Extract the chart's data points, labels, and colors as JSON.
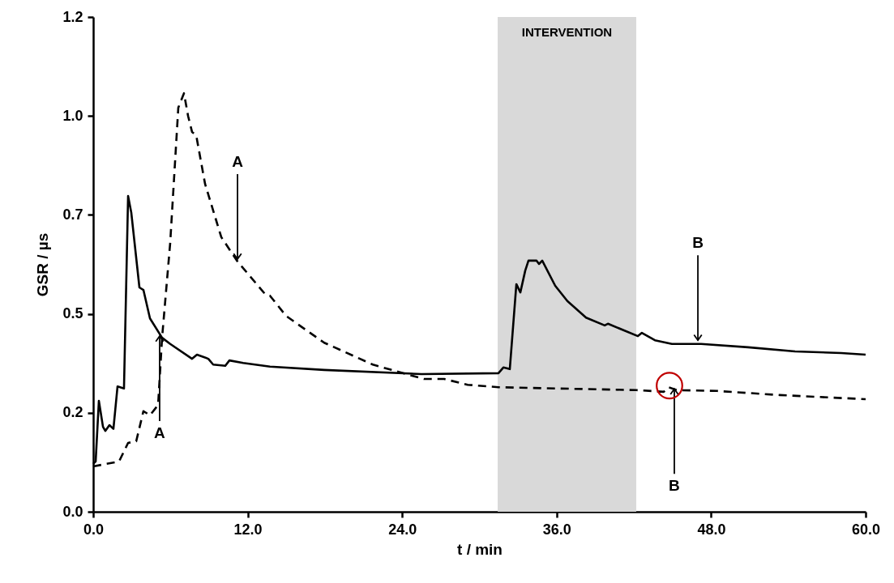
{
  "chart_data": {
    "type": "line",
    "xlabel": "t / min",
    "ylabel": "GSR / µs",
    "xlim": [
      0,
      60
    ],
    "ylim": [
      0,
      1.2
    ],
    "xticks": [
      {
        "value": 0,
        "label": "0.0"
      },
      {
        "value": 12,
        "label": "12.0"
      },
      {
        "value": 24,
        "label": "24.0"
      },
      {
        "value": 36,
        "label": "36.0"
      },
      {
        "value": 48,
        "label": "48.0"
      },
      {
        "value": 60,
        "label": "60.0"
      }
    ],
    "yticks": [
      {
        "value": 0,
        "label": "0.0"
      },
      {
        "value": 0.24,
        "label": "0.2"
      },
      {
        "value": 0.48,
        "label": "0.5"
      },
      {
        "value": 0.72,
        "label": "0.7"
      },
      {
        "value": 0.96,
        "label": "1.0"
      },
      {
        "value": 1.2,
        "label": "1.2"
      }
    ],
    "grid": false,
    "series": [
      {
        "color": "#000000",
        "line_style": "solid",
        "x": [
          0,
          0.19,
          0.44,
          0.76,
          0.94,
          1.26,
          1.57,
          1.89,
          2.39,
          2.71,
          2.96,
          3.59,
          3.9,
          4.41,
          5.35,
          5.98,
          7.68,
          8.06,
          8.94,
          9.32,
          10.26,
          10.58,
          11.65,
          13.73,
          17.94,
          25.5,
          31.48,
          31.86,
          32.36,
          32.87,
          33.18,
          33.56,
          33.81,
          34.44,
          34.63,
          34.88,
          35.89,
          36.83,
          38.28,
          39.73,
          39.98,
          42.31,
          42.62,
          43.63,
          44.95,
          47.22,
          50.87,
          54.52,
          58.11,
          60
        ],
        "values": [
          0.116,
          0.122,
          0.269,
          0.206,
          0.196,
          0.21,
          0.201,
          0.304,
          0.299,
          0.766,
          0.725,
          0.544,
          0.538,
          0.469,
          0.422,
          0.407,
          0.371,
          0.381,
          0.371,
          0.357,
          0.354,
          0.367,
          0.361,
          0.352,
          0.344,
          0.334,
          0.336,
          0.35,
          0.346,
          0.552,
          0.532,
          0.585,
          0.609,
          0.609,
          0.601,
          0.609,
          0.548,
          0.511,
          0.471,
          0.452,
          0.456,
          0.426,
          0.434,
          0.416,
          0.407,
          0.407,
          0.399,
          0.389,
          0.385,
          0.381
        ]
      },
      {
        "color": "#000000",
        "line_style": "dashed",
        "x": [
          0,
          2.01,
          2.71,
          3.34,
          3.9,
          4.41,
          5.04,
          5.35,
          5.98,
          6.61,
          7.05,
          7.37,
          7.68,
          8.0,
          8.69,
          9.95,
          11.21,
          13.35,
          13.73,
          14.98,
          17.94,
          21.72,
          23.17,
          25.69,
          27.26,
          29.09,
          31.48,
          42.18,
          44.32,
          44.7,
          45.33,
          48.48,
          53.33,
          60
        ],
        "values": [
          0.11,
          0.122,
          0.167,
          0.171,
          0.244,
          0.234,
          0.259,
          0.422,
          0.652,
          0.98,
          1.015,
          0.96,
          0.921,
          0.913,
          0.795,
          0.666,
          0.607,
          0.528,
          0.524,
          0.475,
          0.41,
          0.357,
          0.344,
          0.322,
          0.322,
          0.308,
          0.302,
          0.295,
          0.291,
          0.302,
          0.295,
          0.293,
          0.283,
          0.273
        ]
      }
    ],
    "bands": [
      {
        "axis": "x",
        "from": 31.42,
        "to": 42.18,
        "label": "INTERVENTION",
        "color": "#d9d9d9"
      }
    ],
    "annotations": [
      {
        "text": "A",
        "x": 11.21,
        "y": 0.613
      },
      {
        "text": "A",
        "x": 5.16,
        "y": 0.426
      },
      {
        "text": "B",
        "x": 46.97,
        "y": 0.416
      },
      {
        "text": "B",
        "x": 45.14,
        "y": 0.298
      }
    ]
  }
}
